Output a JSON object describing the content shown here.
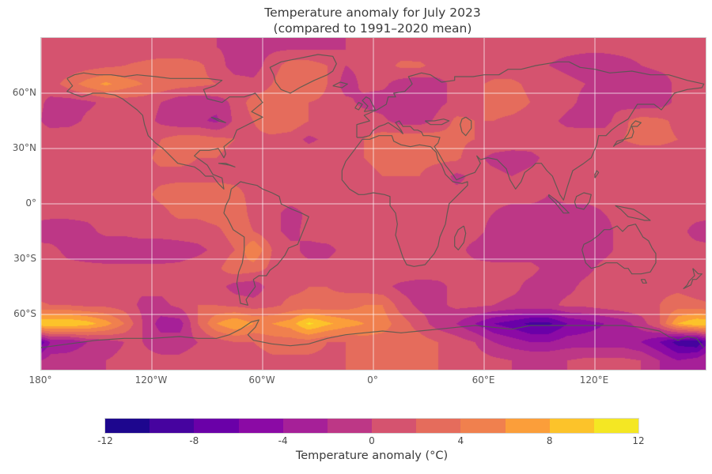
{
  "title": {
    "line1": "Temperature anomaly for July 2023",
    "line2": "(compared to 1991–2020 mean)"
  },
  "map": {
    "lat_ticks": [
      {
        "deg": 60,
        "label": "60°N"
      },
      {
        "deg": 30,
        "label": "30°N"
      },
      {
        "deg": 0,
        "label": "0°"
      },
      {
        "deg": -30,
        "label": "30°S"
      },
      {
        "deg": -60,
        "label": "60°S"
      }
    ],
    "lon_ticks": [
      {
        "deg": -180,
        "label": "180°"
      },
      {
        "deg": -120,
        "label": "120°W"
      },
      {
        "deg": -60,
        "label": "60°W"
      },
      {
        "deg": 0,
        "label": "0°"
      },
      {
        "deg": 60,
        "label": "60°E"
      },
      {
        "deg": 120,
        "label": "120°E"
      }
    ],
    "gridline_color": "#ffffff",
    "coastline_color": "#50594f"
  },
  "colorbar": {
    "label": "Temperature anomaly (°C)",
    "min": -12,
    "max": 12,
    "step": 2,
    "tick_values": [
      -12,
      -8,
      -4,
      0,
      4,
      8,
      12
    ],
    "tick_labels": [
      "-12",
      "-8",
      "-4",
      "0",
      "4",
      "8",
      "12"
    ],
    "colors": [
      "#1d068e",
      "#46039f",
      "#6a00a8",
      "#8b0aa5",
      "#a62098",
      "#bd3786",
      "#d5536f",
      "#e56c5c",
      "#f0804e",
      "#fb9e3a",
      "#fcc32a",
      "#f4e723"
    ]
  },
  "chart_data": {
    "type": "heatmap",
    "title": "Temperature anomaly for July 2023 (compared to 1991–2020 mean)",
    "colormap": "plasma",
    "units": "°C",
    "colorbar_label": "Temperature anomaly (°C)",
    "vmin": -12,
    "vmax": 12,
    "level_step": 2,
    "projection": "equirectangular",
    "lon_range": [
      -180,
      180
    ],
    "lat_range": [
      -90,
      90
    ],
    "lat": [
      85,
      75,
      65,
      55,
      45,
      35,
      25,
      15,
      5,
      -5,
      -15,
      -25,
      -35,
      -45,
      -55,
      -65,
      -75,
      -85
    ],
    "lon": [
      -175,
      -165,
      -155,
      -145,
      -135,
      -125,
      -115,
      -105,
      -95,
      -85,
      -75,
      -65,
      -55,
      -45,
      -35,
      -25,
      -15,
      -5,
      5,
      15,
      25,
      35,
      45,
      55,
      65,
      75,
      85,
      95,
      105,
      115,
      125,
      135,
      145,
      155,
      165,
      175
    ],
    "values": [
      [
        0.5,
        0.5,
        0.5,
        0.5,
        0.5,
        0.5,
        0.5,
        0.5,
        0.3,
        0,
        -0.5,
        -0.5,
        -0.5,
        -0.5,
        -0.5,
        -0.3,
        0,
        0.3,
        0.5,
        0.5,
        0.3,
        0,
        0,
        0.3,
        0.5,
        0.5,
        0.5,
        0.5,
        0.5,
        0.5,
        0.5,
        0.5,
        0.5,
        0.5,
        0.5,
        0.5
      ],
      [
        0.5,
        0.5,
        1,
        1.5,
        2,
        2.5,
        3,
        3,
        2.5,
        1,
        -1,
        -1,
        1,
        3,
        3,
        2,
        0,
        0.5,
        1,
        2.5,
        2.5,
        1,
        0.5,
        0.5,
        0.5,
        0.5,
        0.5,
        0,
        -0.5,
        -1,
        -1,
        -0.5,
        0,
        0.5,
        0.5,
        0.5
      ],
      [
        1,
        3,
        5,
        6.5,
        5,
        4,
        3.5,
        3,
        2.5,
        2,
        1,
        0.5,
        2,
        4,
        4,
        2,
        -1,
        0.5,
        0.5,
        -1,
        -1.5,
        -0.5,
        0.5,
        1.5,
        2.5,
        2.5,
        1.5,
        1,
        0.5,
        0,
        -0.5,
        -1,
        -1.5,
        -1,
        0.5,
        1
      ],
      [
        -0.5,
        -1,
        -0.5,
        0.5,
        1,
        1,
        0,
        -1.5,
        -1.5,
        -1,
        0.5,
        3,
        3,
        2,
        2,
        1.5,
        0.5,
        -0.5,
        -1,
        -1.5,
        -1.5,
        -0.5,
        0.5,
        1,
        3,
        3,
        2,
        1.5,
        0.5,
        -0.5,
        -0.5,
        -1,
        -1.5,
        -1,
        0.5,
        1
      ],
      [
        -1,
        -1,
        0.5,
        1,
        1,
        1,
        -0.5,
        -1.5,
        -1.5,
        -2.5,
        0.5,
        2,
        3.5,
        3.5,
        2,
        1.5,
        1,
        1,
        0.5,
        -1,
        -1,
        0.5,
        2.5,
        2,
        2,
        1.5,
        1,
        0.5,
        -0.5,
        -1,
        -1,
        1.5,
        3,
        2.5,
        1.5,
        1
      ],
      [
        1.5,
        2,
        2,
        1.5,
        1,
        1,
        2,
        3,
        3,
        2.5,
        2,
        1.5,
        1.5,
        1,
        -0.5,
        0.5,
        1,
        2,
        3,
        3.5,
        3.5,
        3,
        2.5,
        2,
        1.5,
        1.5,
        1,
        1,
        1,
        1.5,
        1.5,
        2,
        2.5,
        2.5,
        2,
        1.5
      ],
      [
        1,
        1,
        1,
        1,
        1,
        1.5,
        2.5,
        2.5,
        2,
        2,
        1.5,
        1.5,
        1.5,
        1.5,
        1.5,
        1.5,
        1.5,
        2,
        2.5,
        2.5,
        2.5,
        2.5,
        2.5,
        0.5,
        -0.5,
        -1,
        -0.5,
        0.5,
        1,
        1,
        1.5,
        1,
        1,
        1,
        1,
        1
      ],
      [
        1,
        1,
        1,
        1,
        1,
        1.5,
        1.5,
        1.5,
        1.5,
        1.5,
        1.5,
        1.5,
        1.5,
        1.5,
        1.5,
        1.5,
        1.5,
        1.5,
        2,
        2,
        2,
        1,
        -0.5,
        0.5,
        0.5,
        0,
        0.5,
        0.5,
        0.5,
        1,
        1,
        1,
        1,
        1,
        1,
        1
      ],
      [
        0.5,
        0.5,
        1,
        1,
        1,
        1.5,
        2.5,
        3,
        3,
        3,
        2.5,
        1.5,
        1.5,
        1.5,
        1.5,
        1.5,
        1,
        1,
        1,
        1,
        1,
        0.5,
        0.5,
        0.5,
        0.5,
        0.5,
        0.5,
        0,
        0.5,
        0.5,
        0.5,
        0.5,
        0.5,
        0.5,
        0.5,
        0.5
      ],
      [
        0.5,
        0.5,
        0.5,
        0.5,
        0.5,
        1,
        1.5,
        2.5,
        2.5,
        3,
        3,
        1.5,
        1,
        -1,
        0.5,
        1,
        1,
        1,
        1,
        1,
        1,
        0.5,
        0.5,
        0.5,
        0,
        -0.5,
        -0.5,
        -0.5,
        -0.5,
        -0.5,
        0,
        0.5,
        0.5,
        0.5,
        0.5,
        0.5
      ],
      [
        -1,
        -1,
        -0.5,
        0.5,
        0.5,
        1,
        1,
        1,
        1,
        1.5,
        3,
        2,
        0.5,
        -0.5,
        0.5,
        1,
        1,
        1,
        1,
        1,
        1,
        0.5,
        0.5,
        0.5,
        -0.5,
        -1,
        -1,
        -1,
        -1,
        -1,
        -0.5,
        0.5,
        0.5,
        0.5,
        0.5,
        -0.5
      ],
      [
        0.5,
        -0.5,
        -1,
        -1.5,
        -1.5,
        -1.5,
        -1.5,
        -1,
        -0.5,
        0.5,
        2,
        6,
        2,
        0.5,
        -0.5,
        -0.5,
        0.5,
        1,
        1,
        1,
        1,
        1,
        0.5,
        -0.5,
        -1,
        -1,
        -1,
        -1,
        -1.5,
        -1,
        -0.5,
        0.5,
        0.5,
        1,
        0.5,
        0.5
      ],
      [
        0.5,
        0.5,
        0.5,
        0.5,
        0.5,
        0.5,
        0.5,
        0.5,
        1,
        1.5,
        3.5,
        3,
        1.5,
        0.5,
        0.5,
        0.5,
        1,
        1,
        1,
        1.5,
        1.5,
        1,
        0.5,
        0.5,
        0.5,
        0.5,
        0.5,
        -0.5,
        -1,
        -0.5,
        0.5,
        1,
        1.5,
        1.5,
        1.5,
        1
      ],
      [
        1,
        1,
        1,
        0.5,
        0.5,
        0.5,
        0.5,
        1,
        1,
        1,
        -1,
        -1.5,
        1,
        1.5,
        2,
        2,
        1.5,
        1,
        0.5,
        -0.5,
        -1,
        -0.5,
        0.5,
        1,
        1,
        0.5,
        -0.5,
        -1,
        -0.5,
        0.5,
        1,
        1,
        1,
        1.5,
        1.5,
        1
      ],
      [
        2,
        2,
        1.5,
        1.5,
        1,
        -0.5,
        -0.5,
        0.5,
        2,
        2,
        1.5,
        1,
        1.5,
        2.5,
        2.5,
        2.5,
        3,
        4,
        4,
        1,
        -0.5,
        -0.5,
        0.5,
        0.5,
        0,
        -0.5,
        -0.5,
        -0.5,
        0.5,
        0.5,
        1,
        1.5,
        1.5,
        2,
        3,
        2.5
      ],
      [
        10,
        10,
        9,
        7,
        4,
        0,
        -3,
        -3,
        2,
        6,
        8,
        6,
        6,
        7,
        10.5,
        8.5,
        7,
        6,
        5,
        3,
        1,
        -1,
        -2,
        -4,
        -6,
        -7,
        -8.5,
        -8.5,
        -6,
        -5,
        -4,
        -3,
        -1,
        2,
        8,
        10
      ],
      [
        -4,
        -4,
        -2,
        -1,
        0,
        0,
        -1,
        -1,
        0,
        1,
        2,
        2,
        3,
        3,
        3,
        2,
        2,
        3,
        3,
        3,
        3,
        2,
        1,
        0,
        -2,
        -3,
        -4,
        -4,
        -3,
        -3,
        -3,
        -3,
        -4,
        -6,
        -9,
        -10
      ],
      [
        -1,
        -0.5,
        0,
        0,
        0.5,
        0.5,
        0.5,
        0.5,
        1,
        1,
        1,
        1,
        1.5,
        1.5,
        1.5,
        1.5,
        2,
        2.5,
        3,
        3,
        2.5,
        2,
        1.5,
        1,
        0.5,
        0,
        0,
        0,
        0,
        0.5,
        0.5,
        0.5,
        0,
        -2,
        -4,
        -3
      ]
    ]
  }
}
